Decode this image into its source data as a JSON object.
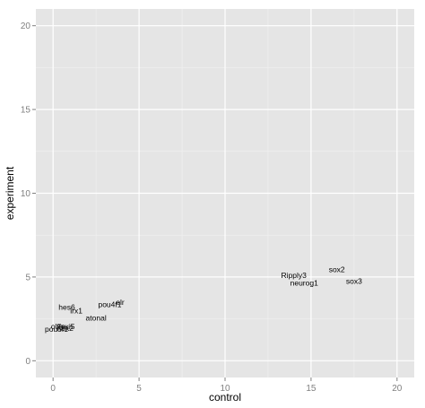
{
  "chart_data": {
    "type": "scatter",
    "title": "",
    "xlabel": "control",
    "ylabel": "experiment",
    "xlim": [
      -1,
      21
    ],
    "ylim": [
      -1,
      21
    ],
    "xticks": [
      0,
      5,
      10,
      15,
      20
    ],
    "yticks": [
      0,
      5,
      10,
      15,
      20
    ],
    "grid": true,
    "legend": "none",
    "background_color": "#e5e5e5",
    "grid_color": "#ffffff",
    "points": [
      {
        "label": "Ripply3",
        "x": 14.0,
        "y": 5.1
      },
      {
        "label": "neurog1",
        "x": 14.6,
        "y": 4.65
      },
      {
        "label": "sox2",
        "x": 16.5,
        "y": 5.45
      },
      {
        "label": "sox3",
        "x": 17.5,
        "y": 4.75
      },
      {
        "label": "hes6",
        "x": 0.8,
        "y": 3.2
      },
      {
        "label": "irx1",
        "x": 1.35,
        "y": 3.0
      },
      {
        "label": "pou4f1",
        "x": 3.3,
        "y": 3.35
      },
      {
        "label": "elr",
        "x": 3.9,
        "y": 3.5
      },
      {
        "label": "atonal",
        "x": 2.5,
        "y": 2.55
      },
      {
        "label": "olfm",
        "x": 0.3,
        "y": 2.05
      },
      {
        "label": "foxi5",
        "x": 0.8,
        "y": 2.05
      },
      {
        "label": "pou5f1",
        "x": 0.2,
        "y": 1.9
      },
      {
        "label": "hox2",
        "x": 0.7,
        "y": 1.95
      }
    ]
  }
}
